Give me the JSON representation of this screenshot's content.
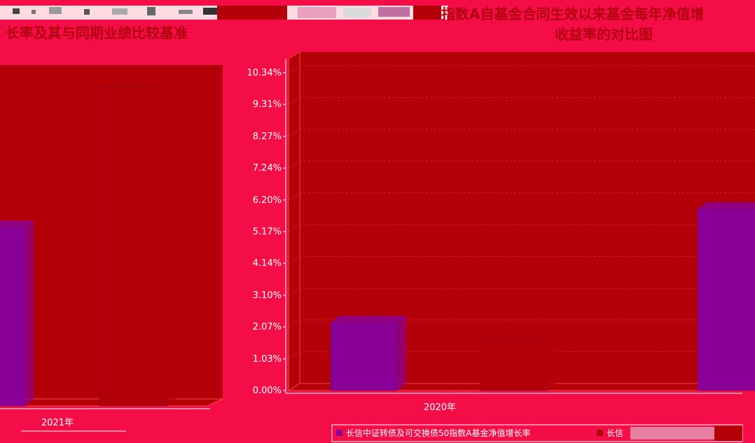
{
  "left_title": "长率及其与同期业绩比较基准",
  "right_title_line1": "指数A自基金合同生效以来基金每年净值增",
  "right_title_line2": "收益率的对比图",
  "colors": {
    "background": "#f40d46",
    "plot": "#b40009",
    "fund": "#8a0096",
    "benchmark": "#b40009",
    "axis": "#ffffff"
  },
  "chart_data": [
    {
      "type": "bar",
      "categories": [
        "2021年"
      ],
      "series": [
        {
          "name": "",
          "values": [
            5.8
          ]
        },
        {
          "name": "",
          "values": [
            10.4
          ]
        }
      ]
    },
    {
      "type": "bar",
      "categories": [
        "2020年"
      ],
      "ylim": [
        0,
        10.34
      ],
      "yticks": [
        "0.00%",
        "1.03%",
        "2.07%",
        "3.10%",
        "4.14%",
        "5.17%",
        "6.20%",
        "7.24%",
        "8.27%",
        "9.31%",
        "10.34%"
      ],
      "series": [
        {
          "name": "长信中证转债及可交换债50指数A基金净值增长率",
          "values": [
            2.2
          ]
        },
        {
          "name": "长信",
          "values": [
            1.7
          ]
        },
        {
          "name": "",
          "values": [
            5.9
          ]
        }
      ],
      "legend_position": "bottom-right"
    }
  ]
}
